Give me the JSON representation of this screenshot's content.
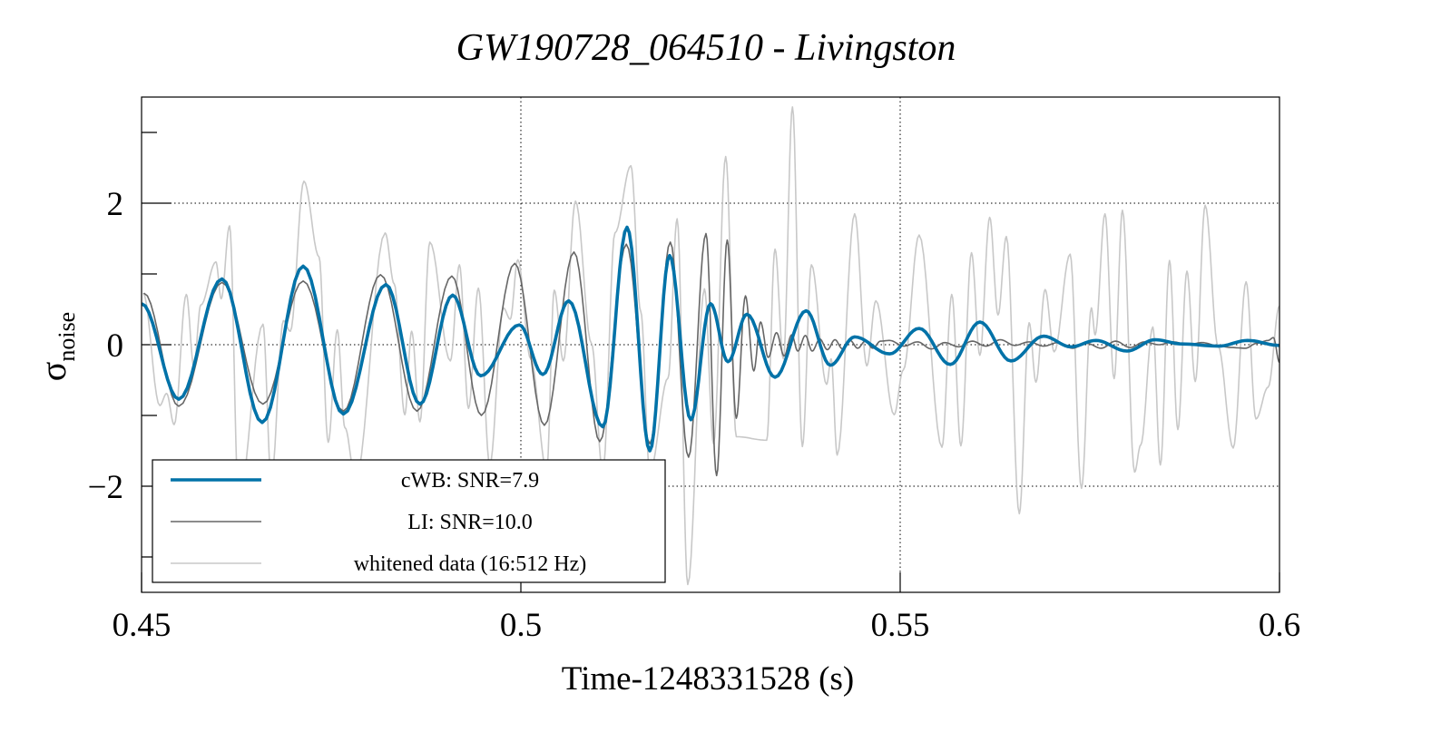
{
  "chart_data": {
    "type": "line",
    "title": "GW190728_064510 - Livingston",
    "xlabel": "Time-1248331528 (s)",
    "ylabel_main": "σ",
    "ylabel_sub": "noise",
    "xlim": [
      0.45,
      0.6
    ],
    "ylim": [
      -3.5,
      3.5
    ],
    "xticks": [
      0.45,
      0.5,
      0.55,
      0.6
    ],
    "xtick_labels": [
      "0.45",
      "0.5",
      "0.55",
      "0.6"
    ],
    "yticks": [
      -2,
      0,
      2
    ],
    "ytick_labels": [
      "−2",
      "0",
      "2"
    ],
    "yminor_ticks": [
      -3,
      -1,
      1,
      3
    ],
    "grid": true,
    "legend_position": "bottom-left",
    "series": [
      {
        "name": "whitened data (16:512 Hz)",
        "color": "#c8c8c8",
        "points": [
          [
            0.4502,
            0.73
          ],
          [
            0.4524,
            -0.86
          ],
          [
            0.4533,
            -0.69
          ],
          [
            0.4543,
            -1.13
          ],
          [
            0.4559,
            0.71
          ],
          [
            0.4569,
            -0.31
          ],
          [
            0.4578,
            0.56
          ],
          [
            0.4598,
            1.17
          ],
          [
            0.4605,
            0.65
          ],
          [
            0.4616,
            1.68
          ],
          [
            0.4628,
            -2.2
          ],
          [
            0.466,
            0.29
          ],
          [
            0.4671,
            -1.9
          ],
          [
            0.4687,
            0.34
          ],
          [
            0.4696,
            0.19
          ],
          [
            0.4714,
            2.31
          ],
          [
            0.4734,
            1.24
          ],
          [
            0.4746,
            -1.38
          ],
          [
            0.4758,
            0.21
          ],
          [
            0.4768,
            -1.17
          ],
          [
            0.4782,
            -1.9
          ],
          [
            0.4821,
            1.58
          ],
          [
            0.4833,
            0.86
          ],
          [
            0.4847,
            -0.99
          ],
          [
            0.4856,
            0.19
          ],
          [
            0.4867,
            -1.09
          ],
          [
            0.488,
            1.45
          ],
          [
            0.4907,
            -0.23
          ],
          [
            0.4919,
            1.13
          ],
          [
            0.4931,
            -0.9
          ],
          [
            0.4944,
            0.8
          ],
          [
            0.4959,
            -1.7
          ],
          [
            0.4977,
            0.52
          ],
          [
            0.4986,
            0.36
          ],
          [
            0.4996,
            1.2
          ],
          [
            0.5013,
            -0.2
          ],
          [
            0.5034,
            -1.78
          ],
          [
            0.5044,
            0.77
          ],
          [
            0.5056,
            -0.23
          ],
          [
            0.5072,
            2.03
          ],
          [
            0.5093,
            0.02
          ],
          [
            0.5108,
            -1.8
          ],
          [
            0.5124,
            1.58
          ],
          [
            0.5145,
            2.53
          ],
          [
            0.5158,
            0.47
          ],
          [
            0.517,
            -1.8
          ],
          [
            0.5194,
            -0.47
          ],
          [
            0.5206,
            1.78
          ],
          [
            0.522,
            -3.39
          ],
          [
            0.5242,
            0.79
          ],
          [
            0.5254,
            -1.4
          ],
          [
            0.527,
            2.66
          ],
          [
            0.5284,
            -1.3
          ],
          [
            0.5324,
            -1.35
          ],
          [
            0.5335,
            1.35
          ],
          [
            0.5346,
            -0.2
          ],
          [
            0.5358,
            3.36
          ],
          [
            0.5371,
            -1.44
          ],
          [
            0.5383,
            1.13
          ],
          [
            0.5403,
            -0.56
          ],
          [
            0.5409,
            -0.2
          ],
          [
            0.5417,
            -1.56
          ],
          [
            0.544,
            1.85
          ],
          [
            0.5456,
            -0.3
          ],
          [
            0.5468,
            0.62
          ],
          [
            0.5492,
            -0.99
          ],
          [
            0.5504,
            -0.36
          ],
          [
            0.5525,
            1.55
          ],
          [
            0.5555,
            -1.45
          ],
          [
            0.5568,
            0.71
          ],
          [
            0.558,
            -1.43
          ],
          [
            0.5594,
            1.3
          ],
          [
            0.5605,
            -0.15
          ],
          [
            0.5618,
            1.8
          ],
          [
            0.5629,
            0.42
          ],
          [
            0.564,
            1.53
          ],
          [
            0.5657,
            -2.39
          ],
          [
            0.567,
            0.31
          ],
          [
            0.5679,
            -0.53
          ],
          [
            0.5691,
            0.78
          ],
          [
            0.5703,
            -0.1
          ],
          [
            0.5724,
            1.28
          ],
          [
            0.5739,
            -2.03
          ],
          [
            0.5752,
            0.52
          ],
          [
            0.5757,
            0.14
          ],
          [
            0.577,
            1.85
          ],
          [
            0.5782,
            -0.48
          ],
          [
            0.5793,
            1.9
          ],
          [
            0.5809,
            -1.8
          ],
          [
            0.5817,
            -1.42
          ],
          [
            0.5833,
            0.25
          ],
          [
            0.5843,
            -1.7
          ],
          [
            0.5855,
            1.19
          ],
          [
            0.5866,
            -1.2
          ],
          [
            0.5878,
            1.04
          ],
          [
            0.5889,
            -0.52
          ],
          [
            0.5902,
            1.97
          ],
          [
            0.5919,
            -0.02
          ],
          [
            0.5939,
            -1.46
          ],
          [
            0.5956,
            0.89
          ],
          [
            0.5969,
            -1.05
          ],
          [
            0.5985,
            -0.6
          ],
          [
            0.6,
            0.55
          ]
        ]
      },
      {
        "name": "LI: SNR=10.0",
        "color": "#666666",
        "points": [
          [
            0.4503,
            0.73
          ],
          [
            0.4549,
            -0.87
          ],
          [
            0.4606,
            0.88
          ],
          [
            0.466,
            -0.84
          ],
          [
            0.4713,
            0.9
          ],
          [
            0.4766,
            -0.94
          ],
          [
            0.4815,
            0.99
          ],
          [
            0.4863,
            -0.94
          ],
          [
            0.4909,
            0.97
          ],
          [
            0.4948,
            -1.0
          ],
          [
            0.4992,
            1.15
          ],
          [
            0.5031,
            -1.14
          ],
          [
            0.507,
            1.31
          ],
          [
            0.5104,
            -1.37
          ],
          [
            0.5139,
            1.42
          ],
          [
            0.517,
            -1.4
          ],
          [
            0.5197,
            1.45
          ],
          [
            0.5221,
            -1.59
          ],
          [
            0.5244,
            1.57
          ],
          [
            0.5258,
            -1.85
          ],
          [
            0.5272,
            1.48
          ],
          [
            0.5284,
            -1.04
          ],
          [
            0.5296,
            0.69
          ],
          [
            0.5307,
            -0.37
          ],
          [
            0.5316,
            0.32
          ],
          [
            0.5326,
            -0.18
          ],
          [
            0.5337,
            0.17
          ],
          [
            0.5347,
            -0.16
          ],
          [
            0.5357,
            0.14
          ],
          [
            0.5365,
            -0.09
          ],
          [
            0.5375,
            0.13
          ],
          [
            0.5384,
            -0.09
          ],
          [
            0.5394,
            0.08
          ],
          [
            0.5404,
            -0.07
          ],
          [
            0.5414,
            0.07
          ],
          [
            0.5424,
            -0.06
          ],
          [
            0.5434,
            0.06
          ],
          [
            0.5444,
            -0.05
          ],
          [
            0.5454,
            0.05
          ],
          [
            0.5464,
            -0.05
          ],
          [
            0.5474,
            0.05
          ],
          [
            0.5486,
            0.06
          ],
          [
            0.5505,
            -0.02
          ],
          [
            0.5523,
            0.04
          ],
          [
            0.5541,
            -0.06
          ],
          [
            0.5559,
            0.03
          ],
          [
            0.5577,
            -0.03
          ],
          [
            0.5595,
            0.05
          ],
          [
            0.5613,
            -0.02
          ],
          [
            0.5632,
            0.07
          ],
          [
            0.5651,
            -0.01
          ],
          [
            0.567,
            0.04
          ],
          [
            0.5689,
            -0.02
          ],
          [
            0.5708,
            0.03
          ],
          [
            0.5727,
            -0.05
          ],
          [
            0.5746,
            0.02
          ],
          [
            0.5765,
            -0.05
          ],
          [
            0.5784,
            0.05
          ],
          [
            0.5803,
            -0.04
          ],
          [
            0.5822,
            0.04
          ],
          [
            0.5841,
            0.0
          ],
          [
            0.586,
            0.04
          ],
          [
            0.5879,
            0.0
          ],
          [
            0.5898,
            0.03
          ],
          [
            0.5917,
            -0.01
          ],
          [
            0.5936,
            -0.04
          ],
          [
            0.5955,
            -0.05
          ],
          [
            0.597,
            0.02
          ],
          [
            0.5985,
            0.06
          ],
          [
            0.5992,
            0.1
          ],
          [
            0.6,
            -0.25
          ]
        ]
      },
      {
        "name": "cWB: SNR=7.9",
        "color": "#0072a8",
        "points": [
          [
            0.45,
            0.58
          ],
          [
            0.4549,
            -0.77
          ],
          [
            0.4606,
            0.93
          ],
          [
            0.4659,
            -1.1
          ],
          [
            0.4713,
            1.11
          ],
          [
            0.4766,
            -0.98
          ],
          [
            0.4822,
            0.85
          ],
          [
            0.4867,
            -0.84
          ],
          [
            0.491,
            0.7
          ],
          [
            0.4947,
            -0.44
          ],
          [
            0.4998,
            0.28
          ],
          [
            0.5029,
            -0.42
          ],
          [
            0.5063,
            0.62
          ],
          [
            0.5108,
            -1.16
          ],
          [
            0.514,
            1.66
          ],
          [
            0.517,
            -1.5
          ],
          [
            0.5196,
            1.26
          ],
          [
            0.5224,
            -1.06
          ],
          [
            0.525,
            0.58
          ],
          [
            0.5273,
            -0.24
          ],
          [
            0.5298,
            0.43
          ],
          [
            0.5335,
            -0.46
          ],
          [
            0.5376,
            0.48
          ],
          [
            0.5408,
            -0.29
          ],
          [
            0.544,
            0.11
          ],
          [
            0.5486,
            -0.13
          ],
          [
            0.5525,
            0.23
          ],
          [
            0.5566,
            -0.28
          ],
          [
            0.5605,
            0.32
          ],
          [
            0.5646,
            -0.23
          ],
          [
            0.5689,
            0.12
          ],
          [
            0.5725,
            -0.03
          ],
          [
            0.5758,
            0.06
          ],
          [
            0.5799,
            -0.09
          ],
          [
            0.5836,
            0.07
          ],
          [
            0.5872,
            0.01
          ],
          [
            0.592,
            -0.02
          ],
          [
            0.5958,
            0.06
          ],
          [
            0.6,
            -0.01
          ]
        ]
      }
    ],
    "legend": [
      {
        "label": "cWB: SNR=7.9",
        "color": "#0072a8",
        "width": 3.5
      },
      {
        "label": "LI: SNR=10.0",
        "color": "#666666",
        "width": 1.5
      },
      {
        "label": "whitened data (16:512 Hz)",
        "color": "#c8c8c8",
        "width": 1.5
      }
    ]
  }
}
